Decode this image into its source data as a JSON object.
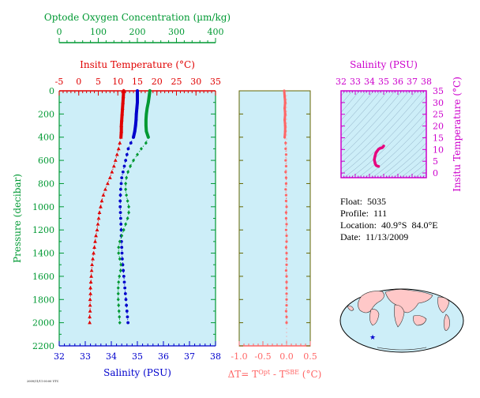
{
  "chart_data": [
    {
      "type": "scatter",
      "title": "",
      "top_axes": [
        {
          "label": "Optode Oxygen Concentration (µm/kg)",
          "ticks": [
            "0",
            "100",
            "200",
            "300",
            "400"
          ],
          "range": [
            0,
            400
          ],
          "color": "#009933"
        },
        {
          "label": "Insitu Temperature (°C)",
          "ticks": [
            "-5",
            "0",
            "5",
            "10",
            "15",
            "20",
            "25",
            "30",
            "35"
          ],
          "range": [
            -5,
            35
          ],
          "color": "#e00000"
        }
      ],
      "bottom_axis": {
        "label": "Salinity (PSU)",
        "ticks": [
          "32",
          "33",
          "34",
          "35",
          "36",
          "37",
          "38"
        ],
        "range": [
          32,
          38
        ],
        "color": "#0000cc"
      },
      "y_axis": {
        "label": "Pressure (decibar)",
        "ticks": [
          "0",
          "200",
          "400",
          "600",
          "800",
          "1000",
          "1200",
          "1400",
          "1600",
          "1800",
          "2000",
          "2200"
        ],
        "range": [
          0,
          2200
        ],
        "inverted": true,
        "color": "#009933"
      },
      "grid": false,
      "background": "#cdeef8",
      "series": [
        {
          "name": "Insitu Temperature",
          "color": "#e00000",
          "marker": "triangle",
          "axis": "temperature",
          "points": [
            [
              11.5,
              0
            ],
            [
              11.4,
              50
            ],
            [
              11.3,
              100
            ],
            [
              11.2,
              150
            ],
            [
              11.1,
              200
            ],
            [
              11.0,
              250
            ],
            [
              10.9,
              300
            ],
            [
              10.9,
              350
            ],
            [
              10.8,
              400
            ],
            [
              10.5,
              450
            ],
            [
              10.2,
              500
            ],
            [
              9.8,
              550
            ],
            [
              9.4,
              600
            ],
            [
              9.0,
              650
            ],
            [
              8.5,
              700
            ],
            [
              8.0,
              750
            ],
            [
              7.4,
              800
            ],
            [
              6.8,
              850
            ],
            [
              6.3,
              900
            ],
            [
              5.9,
              950
            ],
            [
              5.6,
              1000
            ],
            [
              5.3,
              1050
            ],
            [
              5.1,
              1100
            ],
            [
              4.9,
              1150
            ],
            [
              4.7,
              1200
            ],
            [
              4.4,
              1250
            ],
            [
              4.2,
              1300
            ],
            [
              4.0,
              1350
            ],
            [
              3.8,
              1400
            ],
            [
              3.6,
              1450
            ],
            [
              3.4,
              1500
            ],
            [
              3.3,
              1550
            ],
            [
              3.2,
              1600
            ],
            [
              3.1,
              1650
            ],
            [
              3.0,
              1700
            ],
            [
              3.0,
              1750
            ],
            [
              2.9,
              1800
            ],
            [
              2.9,
              1850
            ],
            [
              2.9,
              1900
            ],
            [
              2.8,
              1950
            ],
            [
              2.8,
              2000
            ]
          ]
        },
        {
          "name": "Salinity",
          "color": "#0000cc",
          "marker": "circle",
          "axis": "salinity",
          "points": [
            [
              35.0,
              0
            ],
            [
              35.0,
              50
            ],
            [
              35.0,
              100
            ],
            [
              34.98,
              150
            ],
            [
              34.96,
              200
            ],
            [
              34.95,
              250
            ],
            [
              34.93,
              300
            ],
            [
              34.9,
              350
            ],
            [
              34.85,
              400
            ],
            [
              34.75,
              450
            ],
            [
              34.65,
              500
            ],
            [
              34.6,
              550
            ],
            [
              34.55,
              600
            ],
            [
              34.5,
              650
            ],
            [
              34.45,
              700
            ],
            [
              34.4,
              750
            ],
            [
              34.38,
              800
            ],
            [
              34.36,
              850
            ],
            [
              34.35,
              900
            ],
            [
              34.34,
              950
            ],
            [
              34.34,
              1000
            ],
            [
              34.35,
              1050
            ],
            [
              34.36,
              1100
            ],
            [
              34.37,
              1150
            ],
            [
              34.38,
              1200
            ],
            [
              34.38,
              1250
            ],
            [
              34.39,
              1300
            ],
            [
              34.4,
              1350
            ],
            [
              34.41,
              1400
            ],
            [
              34.42,
              1450
            ],
            [
              34.44,
              1500
            ],
            [
              34.46,
              1550
            ],
            [
              34.48,
              1600
            ],
            [
              34.5,
              1650
            ],
            [
              34.52,
              1700
            ],
            [
              34.54,
              1750
            ],
            [
              34.56,
              1800
            ],
            [
              34.58,
              1850
            ],
            [
              34.6,
              1900
            ],
            [
              34.62,
              1950
            ],
            [
              34.64,
              2000
            ]
          ]
        },
        {
          "name": "Optode Oxygen Concentration",
          "color": "#009933",
          "marker": "diamond",
          "axis": "oxygen",
          "points": [
            [
              232,
              0
            ],
            [
              230,
              50
            ],
            [
              228,
              100
            ],
            [
              225,
              150
            ],
            [
              223,
              200
            ],
            [
              222,
              250
            ],
            [
              222,
              300
            ],
            [
              223,
              350
            ],
            [
              228,
              400
            ],
            [
              222,
              450
            ],
            [
              210,
              500
            ],
            [
              200,
              550
            ],
            [
              190,
              600
            ],
            [
              182,
              650
            ],
            [
              176,
              700
            ],
            [
              172,
              750
            ],
            [
              170,
              800
            ],
            [
              170,
              850
            ],
            [
              172,
              900
            ],
            [
              175,
              950
            ],
            [
              178,
              1000
            ],
            [
              178,
              1050
            ],
            [
              175,
              1100
            ],
            [
              170,
              1150
            ],
            [
              165,
              1200
            ],
            [
              160,
              1250
            ],
            [
              155,
              1300
            ],
            [
              152,
              1350
            ],
            [
              152,
              1400
            ],
            [
              155,
              1450
            ],
            [
              158,
              1500
            ],
            [
              157,
              1550
            ],
            [
              154,
              1600
            ],
            [
              152,
              1650
            ],
            [
              151,
              1700
            ],
            [
              151,
              1750
            ],
            [
              151,
              1800
            ],
            [
              152,
              1850
            ],
            [
              153,
              1900
            ],
            [
              154,
              1950
            ],
            [
              155,
              2000
            ]
          ]
        }
      ]
    },
    {
      "type": "scatter",
      "title": "",
      "x_axis": {
        "label": "ΔT= T^Opt - T^SBE (°C)",
        "ticks": [
          "-1.0",
          "-0.5",
          "0.0",
          "0.5"
        ],
        "range": [
          -1.0,
          0.5
        ],
        "color": "#ff6666"
      },
      "y_axis": {
        "range": [
          0,
          2200
        ],
        "inverted": true
      },
      "background": "#cdeef8",
      "series": [
        {
          "name": "ΔT",
          "color": "#ff6666",
          "marker": "circle",
          "points": [
            [
              -0.05,
              0
            ],
            [
              -0.04,
              50
            ],
            [
              -0.03,
              100
            ],
            [
              -0.04,
              150
            ],
            [
              -0.03,
              200
            ],
            [
              -0.04,
              250
            ],
            [
              -0.03,
              300
            ],
            [
              -0.03,
              350
            ],
            [
              -0.04,
              400
            ],
            [
              -0.02,
              450
            ],
            [
              -0.02,
              500
            ],
            [
              -0.01,
              550
            ],
            [
              -0.02,
              600
            ],
            [
              -0.01,
              650
            ],
            [
              -0.02,
              700
            ],
            [
              -0.01,
              750
            ],
            [
              -0.01,
              800
            ],
            [
              -0.02,
              850
            ],
            [
              -0.01,
              900
            ],
            [
              -0.01,
              950
            ],
            [
              0.0,
              1000
            ],
            [
              -0.01,
              1050
            ],
            [
              -0.01,
              1100
            ],
            [
              0.0,
              1150
            ],
            [
              -0.01,
              1200
            ],
            [
              0.0,
              1250
            ],
            [
              0.0,
              1300
            ],
            [
              -0.01,
              1350
            ],
            [
              0.0,
              1400
            ],
            [
              0.0,
              1450
            ],
            [
              0.0,
              1500
            ],
            [
              -0.01,
              1550
            ],
            [
              0.0,
              1600
            ],
            [
              0.0,
              1650
            ],
            [
              0.0,
              1700
            ],
            [
              0.0,
              1750
            ],
            [
              0.0,
              1800
            ],
            [
              0.0,
              1850
            ],
            [
              -0.01,
              1900
            ],
            [
              0.0,
              1950
            ],
            [
              0.0,
              2000
            ]
          ]
        }
      ]
    },
    {
      "type": "scatter",
      "title": "",
      "x_axis": {
        "label": "Salinity (PSU)",
        "ticks": [
          "32",
          "33",
          "34",
          "35",
          "36",
          "37",
          "38"
        ],
        "range": [
          32,
          38
        ],
        "color": "#cc00cc"
      },
      "y_axis": {
        "label": "Insitu Temperature (°C)",
        "ticks": [
          "0",
          "5",
          "10",
          "15",
          "20",
          "25",
          "30",
          "35"
        ],
        "range": [
          -2,
          35
        ],
        "color": "#cc00cc"
      },
      "background": "#cdeef8",
      "series": [
        {
          "name": "T-S",
          "color": "#e6007e",
          "marker": "line",
          "points": [
            [
              35.0,
              11.5
            ],
            [
              34.95,
              11.1
            ],
            [
              34.9,
              10.8
            ],
            [
              34.75,
              10.5
            ],
            [
              34.65,
              10.2
            ],
            [
              34.55,
              9.4
            ],
            [
              34.45,
              8.5
            ],
            [
              34.4,
              7.4
            ],
            [
              34.36,
              6.3
            ],
            [
              34.34,
              5.6
            ],
            [
              34.36,
              5.1
            ],
            [
              34.38,
              4.7
            ],
            [
              34.4,
              4.0
            ],
            [
              34.42,
              3.8
            ],
            [
              34.46,
              3.3
            ],
            [
              34.5,
              3.1
            ],
            [
              34.54,
              3.0
            ],
            [
              34.58,
              2.9
            ],
            [
              34.64,
              2.8
            ]
          ]
        }
      ]
    }
  ],
  "info": {
    "float": "Float:  5035",
    "profile": "Profile:  111",
    "location": "Location:  40.9°S  84.0°E",
    "date": "Date:  11/13/2009"
  },
  "map": {
    "ocean_color": "#cdeef8",
    "land_color": "#ffc8c8",
    "marker_color": "#0000cc"
  },
  "footnote": "2009/11/11 00:00 UTC"
}
